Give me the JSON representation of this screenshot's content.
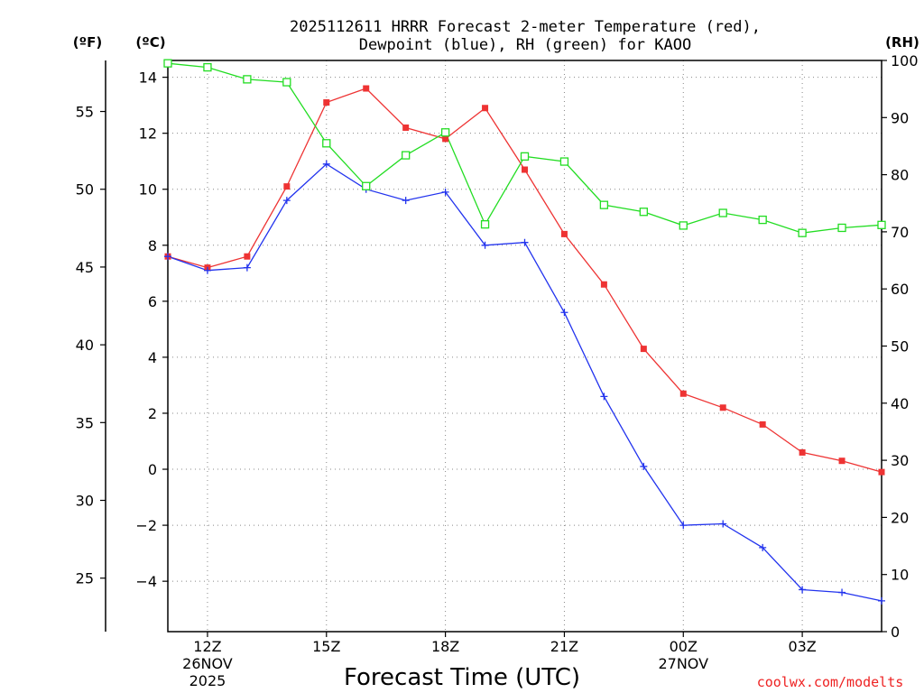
{
  "chart_data": {
    "type": "line",
    "title_line1": "2025112611 HRRR Forecast 2-meter Temperature (red),",
    "title_line2": "Dewpoint (blue), RH (green) for KAOO",
    "xlabel": "Forecast Time (UTC)",
    "credit": "coolwx.com/modelts",
    "left_outer_unit": "(ºF)",
    "left_inner_unit": "(ºC)",
    "right_unit": "(RH)",
    "x_hours": [
      11,
      12,
      13,
      14,
      15,
      16,
      17,
      18,
      19,
      20,
      21,
      22,
      23,
      24,
      25,
      26,
      27,
      28,
      29
    ],
    "x_range": [
      11,
      29
    ],
    "x_ticks": [
      {
        "hour": 12,
        "label": "12Z",
        "sub1": "26NOV",
        "sub2": "2025"
      },
      {
        "hour": 15,
        "label": "15Z",
        "sub1": "",
        "sub2": ""
      },
      {
        "hour": 18,
        "label": "18Z",
        "sub1": "",
        "sub2": ""
      },
      {
        "hour": 21,
        "label": "21Z",
        "sub1": "",
        "sub2": ""
      },
      {
        "hour": 24,
        "label": "00Z",
        "sub1": "27NOV",
        "sub2": ""
      },
      {
        "hour": 27,
        "label": "03Z",
        "sub1": "",
        "sub2": ""
      }
    ],
    "celsius_range": [
      -5.8,
      14.6
    ],
    "celsius_ticks": [
      "14",
      "12",
      "10",
      "8",
      "6",
      "4",
      "2",
      "0",
      "−2",
      "−4"
    ],
    "fahrenheit_ticks": [
      "55",
      "50",
      "45",
      "40",
      "35",
      "30",
      "25"
    ],
    "rh_range": [
      0,
      100
    ],
    "rh_ticks": [
      "100",
      "90",
      "80",
      "70",
      "60",
      "50",
      "40",
      "30",
      "20",
      "10",
      "0"
    ],
    "series": [
      {
        "name": "Temperature",
        "unit": "C",
        "color": "#ee3333",
        "marker": "filled-square",
        "values": [
          7.6,
          7.2,
          7.6,
          10.1,
          13.1,
          13.6,
          12.2,
          11.8,
          12.9,
          10.7,
          8.4,
          6.6,
          4.3,
          2.7,
          2.2,
          1.6,
          0.6,
          0.3,
          -0.1
        ]
      },
      {
        "name": "Dewpoint",
        "unit": "C",
        "color": "#2233ee",
        "marker": "plus",
        "values": [
          7.6,
          7.1,
          7.2,
          9.6,
          10.9,
          10.0,
          9.6,
          9.9,
          8.0,
          8.1,
          5.6,
          2.6,
          0.1,
          -2.0,
          -1.95,
          -2.8,
          -4.3,
          -4.4,
          -4.7
        ]
      },
      {
        "name": "RH",
        "unit": "%",
        "color": "#22dd22",
        "marker": "open-square",
        "values": [
          99.5,
          98.8,
          96.7,
          96.2,
          85.5,
          78.0,
          83.4,
          87.4,
          71.3,
          83.2,
          82.3,
          74.7,
          73.5,
          71.1,
          73.3,
          72.1,
          69.8,
          70.7,
          71.2
        ]
      }
    ]
  }
}
